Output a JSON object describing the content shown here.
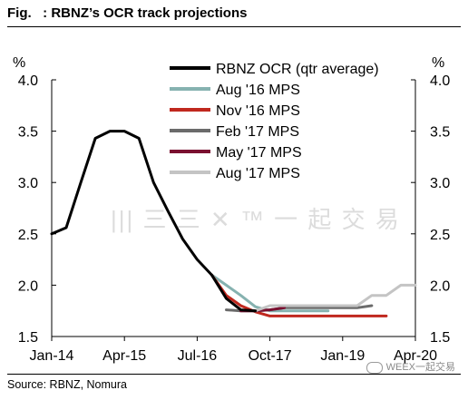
{
  "header": {
    "title": "Fig.   : RBNZ’s OCR track projections"
  },
  "footer": {
    "source": "Source: RBNZ, Nomura",
    "watermark": "WEEX一起交易"
  },
  "watermark_center": "||| 三 三 ✕ ™ 一 起 交 易",
  "chart_data": {
    "type": "line",
    "title": "RBNZ’s OCR track projections",
    "y_unit_left": "%",
    "y_unit_right": "%",
    "ylim": [
      1.5,
      4.0
    ],
    "yticks": [
      "1.5",
      "2.0",
      "2.5",
      "3.0",
      "3.5",
      "4.0"
    ],
    "xlim": [
      "2014-01",
      "2020-04"
    ],
    "xticks": [
      {
        "label": "Jan-14",
        "x": "2014-01"
      },
      {
        "label": "Apr-15",
        "x": "2015-04"
      },
      {
        "label": "Jul-16",
        "x": "2016-07"
      },
      {
        "label": "Oct-17",
        "x": "2017-10"
      },
      {
        "label": "Jan-19",
        "x": "2019-01"
      },
      {
        "label": "Apr-20",
        "x": "2020-04"
      }
    ],
    "grid": false,
    "legend_position": "top-center",
    "series": [
      {
        "name": "RBNZ OCR (qtr average)",
        "color": "#000000",
        "width": 3,
        "points": [
          [
            "2014-01",
            2.5
          ],
          [
            "2014-04",
            2.56
          ],
          [
            "2014-07",
            3.0
          ],
          [
            "2014-10",
            3.43
          ],
          [
            "2015-01",
            3.5
          ],
          [
            "2015-04",
            3.5
          ],
          [
            "2015-07",
            3.43
          ],
          [
            "2015-10",
            3.0
          ],
          [
            "2016-01",
            2.72
          ],
          [
            "2016-04",
            2.45
          ],
          [
            "2016-07",
            2.25
          ],
          [
            "2016-10",
            2.1
          ],
          [
            "2017-01",
            1.87
          ],
          [
            "2017-04",
            1.76
          ],
          [
            "2017-07",
            1.75
          ]
        ]
      },
      {
        "name": "Aug '16 MPS",
        "color": "#86b2b0",
        "width": 3,
        "points": [
          [
            "2016-10",
            2.1
          ],
          [
            "2017-01",
            2.0
          ],
          [
            "2017-04",
            1.9
          ],
          [
            "2017-07",
            1.79
          ],
          [
            "2017-10",
            1.75
          ],
          [
            "2018-01",
            1.75
          ],
          [
            "2018-04",
            1.75
          ],
          [
            "2018-07",
            1.75
          ],
          [
            "2018-10",
            1.75
          ]
        ]
      },
      {
        "name": "Nov '16 MPS",
        "color": "#c0281e",
        "width": 3,
        "points": [
          [
            "2016-10",
            2.1
          ],
          [
            "2017-01",
            1.9
          ],
          [
            "2017-04",
            1.8
          ],
          [
            "2017-07",
            1.74
          ],
          [
            "2017-10",
            1.7
          ],
          [
            "2018-01",
            1.7
          ],
          [
            "2018-04",
            1.7
          ],
          [
            "2018-07",
            1.7
          ],
          [
            "2018-10",
            1.7
          ],
          [
            "2019-01",
            1.7
          ],
          [
            "2019-04",
            1.7
          ],
          [
            "2019-07",
            1.7
          ],
          [
            "2019-10",
            1.7
          ]
        ]
      },
      {
        "name": "Feb '17 MPS",
        "color": "#6b6b6b",
        "width": 3,
        "points": [
          [
            "2017-01",
            1.76
          ],
          [
            "2017-04",
            1.75
          ],
          [
            "2017-07",
            1.75
          ],
          [
            "2017-10",
            1.76
          ],
          [
            "2018-01",
            1.78
          ],
          [
            "2018-04",
            1.78
          ],
          [
            "2018-07",
            1.78
          ],
          [
            "2018-10",
            1.78
          ],
          [
            "2019-01",
            1.78
          ],
          [
            "2019-04",
            1.78
          ],
          [
            "2019-07",
            1.8
          ]
        ]
      },
      {
        "name": "May '17 MPS",
        "color": "#7a1030",
        "width": 3,
        "points": [
          [
            "2017-04",
            1.75
          ],
          [
            "2017-07",
            1.75
          ],
          [
            "2017-10",
            1.76
          ],
          [
            "2018-01",
            1.78
          ]
        ]
      },
      {
        "name": "Aug '17 MPS",
        "color": "#c4c4c4",
        "width": 3,
        "points": [
          [
            "2017-07",
            1.75
          ],
          [
            "2017-10",
            1.8
          ],
          [
            "2018-01",
            1.8
          ],
          [
            "2018-04",
            1.8
          ],
          [
            "2018-07",
            1.8
          ],
          [
            "2018-10",
            1.8
          ],
          [
            "2019-01",
            1.8
          ],
          [
            "2019-04",
            1.8
          ],
          [
            "2019-07",
            1.9
          ],
          [
            "2019-10",
            1.9
          ],
          [
            "2020-01",
            2.0
          ],
          [
            "2020-04",
            2.0
          ]
        ]
      }
    ]
  }
}
